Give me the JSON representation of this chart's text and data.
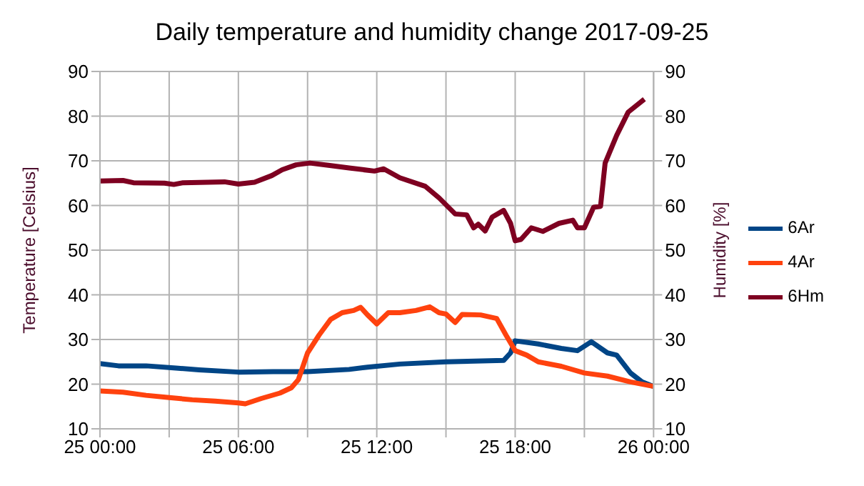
{
  "chart_data": {
    "type": "line",
    "title": "Daily temperature and humidity change 2017-09-25",
    "ylabel": "Temperature [Celsius]",
    "y2label": "Humidity [%]",
    "xlim": [
      "2017-09-25T00:00",
      "2017-09-26T00:00"
    ],
    "xticks": [
      {
        "value": "2017-09-25T00:00",
        "label": "25 00:00"
      },
      {
        "value": "2017-09-25T03:00",
        "label": null
      },
      {
        "value": "2017-09-25T06:00",
        "label": "25 06:00"
      },
      {
        "value": "2017-09-25T09:00",
        "label": null
      },
      {
        "value": "2017-09-25T12:00",
        "label": "25 12:00"
      },
      {
        "value": "2017-09-25T15:00",
        "label": null
      },
      {
        "value": "2017-09-25T18:00",
        "label": "25 18:00"
      },
      {
        "value": "2017-09-25T21:00",
        "label": null
      },
      {
        "value": "2017-09-26T00:00",
        "label": "26 00:00"
      }
    ],
    "ylim": [
      10,
      90
    ],
    "yticks": [
      10,
      20,
      30,
      40,
      50,
      60,
      70,
      80,
      90
    ],
    "y2lim": [
      10,
      90
    ],
    "y2ticks": [
      10,
      20,
      30,
      40,
      50,
      60,
      70,
      80,
      90
    ],
    "grid": true,
    "legend": "right",
    "marker": "none",
    "line_style": "solid",
    "series": [
      {
        "name": "6Ar",
        "color": "#004586",
        "x": [
          "2017-09-25T00:00",
          "2017-09-25T00:48",
          "2017-09-25T02:00",
          "2017-09-25T03:18",
          "2017-09-25T04:18",
          "2017-09-25T06:00",
          "2017-09-25T07:30",
          "2017-09-25T09:00",
          "2017-09-25T10:48",
          "2017-09-25T11:36",
          "2017-09-25T13:00",
          "2017-09-25T15:00",
          "2017-09-25T17:30",
          "2017-09-25T17:48",
          "2017-09-25T18:00",
          "2017-09-25T19:00",
          "2017-09-25T20:00",
          "2017-09-25T20:42",
          "2017-09-25T21:18",
          "2017-09-25T22:00",
          "2017-09-25T22:24",
          "2017-09-25T23:00",
          "2017-09-25T23:30",
          "2017-09-26T00:00"
        ],
        "values": [
          24.6,
          24.1,
          24.1,
          23.6,
          23.2,
          22.7,
          22.8,
          22.8,
          23.3,
          23.8,
          24.5,
          25,
          25.3,
          27,
          29.7,
          29,
          28,
          27.5,
          29.5,
          27,
          26.5,
          22.5,
          20.5,
          19.5
        ]
      },
      {
        "name": "4Ar",
        "color": "#ff420e",
        "x": [
          "2017-09-25T00:00",
          "2017-09-25T01:00",
          "2017-09-25T02:00",
          "2017-09-25T03:00",
          "2017-09-25T04:00",
          "2017-09-25T05:00",
          "2017-09-25T06:00",
          "2017-09-25T06:18",
          "2017-09-25T07:00",
          "2017-09-25T07:48",
          "2017-09-25T08:18",
          "2017-09-25T08:36",
          "2017-09-25T09:00",
          "2017-09-25T09:30",
          "2017-09-25T10:00",
          "2017-09-25T10:30",
          "2017-09-25T11:00",
          "2017-09-25T11:18",
          "2017-09-25T11:36",
          "2017-09-25T12:00",
          "2017-09-25T12:30",
          "2017-09-25T13:00",
          "2017-09-25T13:42",
          "2017-09-25T14:18",
          "2017-09-25T14:42",
          "2017-09-25T15:00",
          "2017-09-25T15:24",
          "2017-09-25T15:42",
          "2017-09-25T16:30",
          "2017-09-25T17:12",
          "2017-09-25T17:36",
          "2017-09-25T18:00",
          "2017-09-25T18:30",
          "2017-09-25T19:00",
          "2017-09-25T20:00",
          "2017-09-25T21:00",
          "2017-09-25T22:00",
          "2017-09-25T23:00",
          "2017-09-26T00:00"
        ],
        "values": [
          18.5,
          18.2,
          17.5,
          17,
          16.5,
          16.2,
          15.8,
          15.6,
          16.8,
          18,
          19.2,
          21,
          27,
          31,
          34.5,
          36,
          36.5,
          37.2,
          35.5,
          33.5,
          36,
          36,
          36.5,
          37.3,
          36,
          35.7,
          33.8,
          35.6,
          35.5,
          34.7,
          31,
          27.5,
          26.5,
          25,
          24,
          22.5,
          21.8,
          20.5,
          19.5
        ]
      },
      {
        "name": "6Hm",
        "color": "#7e0021",
        "axis": "y2",
        "x": [
          "2017-09-25T00:00",
          "2017-09-25T01:00",
          "2017-09-25T01:27",
          "2017-09-25T02:48",
          "2017-09-25T03:12",
          "2017-09-25T03:36",
          "2017-09-25T05:24",
          "2017-09-25T06:00",
          "2017-09-25T06:42",
          "2017-09-25T07:27",
          "2017-09-25T07:54",
          "2017-09-25T08:30",
          "2017-09-25T09:06",
          "2017-09-25T09:54",
          "2017-09-25T10:48",
          "2017-09-25T11:54",
          "2017-09-25T12:18",
          "2017-09-25T13:00",
          "2017-09-25T14:06",
          "2017-09-25T14:42",
          "2017-09-25T15:24",
          "2017-09-25T15:54",
          "2017-09-25T16:12",
          "2017-09-25T16:24",
          "2017-09-25T16:42",
          "2017-09-25T17:00",
          "2017-09-25T17:30",
          "2017-09-25T17:48",
          "2017-09-25T18:00",
          "2017-09-25T18:15",
          "2017-09-25T18:42",
          "2017-09-25T19:12",
          "2017-09-25T19:54",
          "2017-09-25T20:30",
          "2017-09-25T20:42",
          "2017-09-25T21:00",
          "2017-09-25T21:24",
          "2017-09-25T21:42",
          "2017-09-25T21:54",
          "2017-09-25T22:24",
          "2017-09-25T22:54",
          "2017-09-25T23:36"
        ],
        "values": [
          65.5,
          65.6,
          65.1,
          65,
          64.7,
          65.1,
          65.3,
          64.8,
          65.2,
          66.7,
          68,
          69.1,
          69.5,
          69,
          68.4,
          67.7,
          68.2,
          66.2,
          64.3,
          61.7,
          58.1,
          57.9,
          55,
          55.8,
          54.3,
          57.4,
          58.9,
          56,
          52.1,
          52.4,
          55,
          54.2,
          56,
          56.7,
          55,
          55,
          59.6,
          59.8,
          69.5,
          75.7,
          80.9,
          83.8
        ]
      }
    ]
  }
}
